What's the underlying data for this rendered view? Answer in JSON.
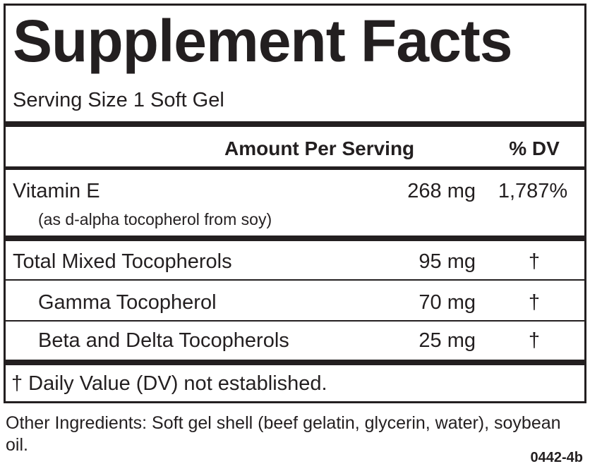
{
  "title": "Supplement Facts",
  "serving_size": "Serving Size 1 Soft Gel",
  "header": {
    "amount": "Amount Per Serving",
    "dv": "% DV"
  },
  "rows": [
    {
      "name": "Vitamin E",
      "note": "(as d-alpha tocopherol from soy)",
      "amount": "268 mg",
      "dv": "1,787%"
    },
    {
      "name": "Total Mixed Tocopherols",
      "amount": "95 mg",
      "dv": "†"
    },
    {
      "name": "Gamma Tocopherol",
      "amount": "70 mg",
      "dv": "†"
    },
    {
      "name": "Beta and Delta Tocopherols",
      "amount": "25 mg",
      "dv": "†"
    }
  ],
  "footnote": "† Daily Value (DV) not established.",
  "other_ingredients": "Other Ingredients:  Soft gel shell (beef gelatin, glycerin, water), soybean oil.",
  "code": "0442-4b"
}
